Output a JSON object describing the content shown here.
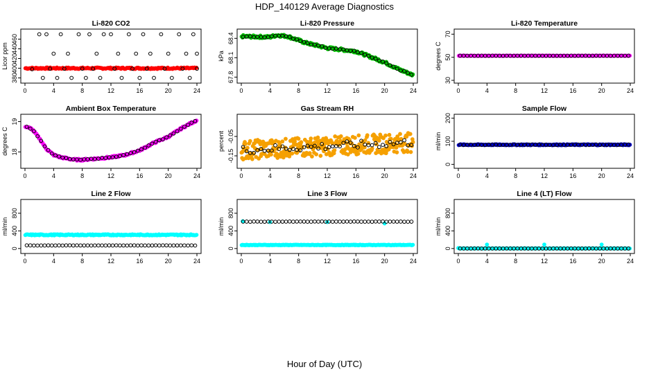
{
  "figure": {
    "title": "HDP_140129  Average Diagnostics",
    "xlabel": "Hour of Day (UTC)"
  },
  "colors": {
    "black": "#000000",
    "red": "#ff0000",
    "green": "#00c000",
    "magenta": "#ff00ff",
    "orange": "#f5a000",
    "blue": "#0000cc",
    "cyan": "#00ffff"
  },
  "chart_data": [
    {
      "type": "scatter",
      "title": "Li-820 CO2",
      "ylabel": "Licor ppm",
      "xlim": [
        0,
        24
      ],
      "ylim": [
        375,
        475
      ],
      "xticks": [
        "0",
        "4",
        "8",
        "12",
        "16",
        "20",
        "24"
      ],
      "yticks": [
        380,
        400,
        420,
        440,
        460
      ],
      "series": [
        {
          "name": "raw",
          "color": "red",
          "marker": "filled",
          "pattern": "const",
          "base": 400,
          "noise": 1.5,
          "n": 180
        },
        {
          "name": "average",
          "color": "black",
          "marker": "open",
          "points": [
            [
              1.0,
              398
            ],
            [
              2.0,
              470
            ],
            [
              2.5,
              380
            ],
            [
              3.0,
              470
            ],
            [
              3.5,
              399
            ],
            [
              4.0,
              430
            ],
            [
              4.5,
              380
            ],
            [
              5.0,
              470
            ],
            [
              5.5,
              399
            ],
            [
              6.0,
              430
            ],
            [
              6.5,
              380
            ],
            [
              7.5,
              470
            ],
            [
              8.0,
              399
            ],
            [
              8.5,
              380
            ],
            [
              9.0,
              470
            ],
            [
              9.5,
              399
            ],
            [
              10.0,
              430
            ],
            [
              10.5,
              380
            ],
            [
              11.0,
              470
            ],
            [
              12.0,
              470
            ],
            [
              12.5,
              399
            ],
            [
              13.0,
              430
            ],
            [
              13.5,
              380
            ],
            [
              14.5,
              470
            ],
            [
              15.0,
              399
            ],
            [
              15.5,
              430
            ],
            [
              16.0,
              380
            ],
            [
              16.5,
              470
            ],
            [
              17.0,
              399
            ],
            [
              17.5,
              430
            ],
            [
              18.0,
              380
            ],
            [
              19.0,
              470
            ],
            [
              19.5,
              399
            ],
            [
              20.0,
              430
            ],
            [
              20.5,
              380
            ],
            [
              21.5,
              470
            ],
            [
              22.0,
              399
            ],
            [
              22.5,
              430
            ],
            [
              23.0,
              380
            ],
            [
              23.5,
              470
            ],
            [
              24.0,
              399
            ],
            [
              24.0,
              430
            ]
          ]
        }
      ]
    },
    {
      "type": "scatter",
      "title": "Li-820 Pressure",
      "ylabel": "kPa",
      "xlim": [
        0,
        24
      ],
      "ylim": [
        67.75,
        68.5
      ],
      "xticks": [
        "0",
        "4",
        "8",
        "12",
        "16",
        "20",
        "24"
      ],
      "yticks": [
        67.8,
        68.1,
        68.4
      ],
      "series": [
        {
          "name": "raw",
          "color": "green",
          "marker": "filled",
          "pattern": "piecewise",
          "knots": [
            [
              0,
              68.43
            ],
            [
              4,
              68.42
            ],
            [
              5,
              68.45
            ],
            [
              6.5,
              68.43
            ],
            [
              9,
              68.33
            ],
            [
              12,
              68.25
            ],
            [
              16,
              68.2
            ],
            [
              20,
              68.03
            ],
            [
              22,
              67.92
            ],
            [
              24,
              67.83
            ]
          ],
          "noise": 0.02,
          "n": 220
        },
        {
          "name": "average",
          "color": "black",
          "marker": "open",
          "pattern": "piecewise",
          "knots": [
            [
              0,
              68.43
            ],
            [
              4,
              68.42
            ],
            [
              5,
              68.45
            ],
            [
              6.5,
              68.43
            ],
            [
              9,
              68.33
            ],
            [
              12,
              68.25
            ],
            [
              16,
              68.2
            ],
            [
              20,
              68.03
            ],
            [
              22,
              67.92
            ],
            [
              24,
              67.83
            ]
          ],
          "noise": 0.008,
          "n": 48
        }
      ]
    },
    {
      "type": "scatter",
      "title": "Li-820 Temperature",
      "ylabel": "degrees C",
      "xlim": [
        0,
        24
      ],
      "ylim": [
        30,
        72
      ],
      "xticks": [
        "0",
        "4",
        "8",
        "12",
        "16",
        "20",
        "24"
      ],
      "yticks": [
        30,
        50,
        70
      ],
      "series": [
        {
          "name": "raw",
          "color": "magenta",
          "marker": "filled",
          "pattern": "const",
          "base": 51.3,
          "noise": 0.1,
          "n": 150
        },
        {
          "name": "average",
          "color": "black",
          "marker": "open",
          "pattern": "const",
          "base": 51.3,
          "noise": 0.05,
          "n": 48
        }
      ]
    },
    {
      "type": "scatter",
      "title": "Ambient Box Temperature",
      "ylabel": "degrees C",
      "xlim": [
        0,
        24
      ],
      "ylim": [
        17.55,
        19.15
      ],
      "xticks": [
        "0",
        "4",
        "8",
        "12",
        "16",
        "20",
        "24"
      ],
      "yticks": [
        18.0,
        19.0
      ],
      "series": [
        {
          "name": "raw",
          "color": "magenta",
          "marker": "filled",
          "pattern": "piecewise",
          "knots": [
            [
              0,
              18.85
            ],
            [
              1,
              18.75
            ],
            [
              2,
              18.45
            ],
            [
              3,
              18.1
            ],
            [
              4,
              17.9
            ],
            [
              5,
              17.82
            ],
            [
              6,
              17.78
            ],
            [
              7,
              17.74
            ],
            [
              8,
              17.74
            ],
            [
              9,
              17.76
            ],
            [
              11,
              17.8
            ],
            [
              12,
              17.82
            ],
            [
              14,
              17.9
            ],
            [
              16,
              18.05
            ],
            [
              18,
              18.3
            ],
            [
              20,
              18.5
            ],
            [
              22,
              18.8
            ],
            [
              24,
              19.05
            ]
          ],
          "noise": 0.03,
          "n": 200
        },
        {
          "name": "average",
          "color": "black",
          "marker": "open",
          "pattern": "piecewise",
          "knots": [
            [
              0,
              18.85
            ],
            [
              1,
              18.75
            ],
            [
              2,
              18.45
            ],
            [
              3,
              18.1
            ],
            [
              4,
              17.9
            ],
            [
              5,
              17.82
            ],
            [
              6,
              17.78
            ],
            [
              7,
              17.74
            ],
            [
              8,
              17.74
            ],
            [
              9,
              17.76
            ],
            [
              11,
              17.8
            ],
            [
              12,
              17.82
            ],
            [
              14,
              17.9
            ],
            [
              16,
              18.05
            ],
            [
              18,
              18.3
            ],
            [
              20,
              18.5
            ],
            [
              22,
              18.8
            ],
            [
              24,
              19.05
            ]
          ],
          "noise": 0.01,
          "n": 48
        }
      ]
    },
    {
      "type": "scatter",
      "title": "Gas Stream RH",
      "ylabel": "percent",
      "xlim": [
        0,
        24
      ],
      "ylim": [
        -0.2,
        0.05
      ],
      "xticks": [
        "0",
        "4",
        "8",
        "12",
        "16",
        "20",
        "24"
      ],
      "yticks": [
        -0.15,
        -0.05
      ],
      "series": [
        {
          "name": "raw",
          "color": "orange",
          "marker": "filled",
          "pattern": "linear",
          "y0": -0.12,
          "y1": -0.08,
          "noise": 0.05,
          "n": 320
        },
        {
          "name": "average",
          "color": "black",
          "marker": "open",
          "pattern": "linear",
          "y0": -0.12,
          "y1": -0.08,
          "noise": 0.02,
          "n": 48
        }
      ]
    },
    {
      "type": "scatter",
      "title": "Sample Flow",
      "ylabel": "ml/min",
      "xlim": [
        0,
        24
      ],
      "ylim": [
        -5,
        205
      ],
      "xticks": [
        "0",
        "4",
        "8",
        "12",
        "16",
        "20",
        "24"
      ],
      "yticks": [
        0,
        100,
        200
      ],
      "series": [
        {
          "name": "raw",
          "color": "blue",
          "marker": "filled",
          "pattern": "const",
          "base": 85,
          "noise": 2,
          "n": 200
        },
        {
          "name": "average",
          "color": "black",
          "marker": "open",
          "pattern": "const",
          "base": 85,
          "noise": 1,
          "n": 48
        }
      ]
    },
    {
      "type": "scatter",
      "title": "Line 2 Flow",
      "ylabel": "ml/min",
      "xlim": [
        0,
        24
      ],
      "ylim": [
        -50,
        1050
      ],
      "xticks": [
        "0",
        "4",
        "8",
        "12",
        "16",
        "20",
        "24"
      ],
      "yticks": [
        0,
        400,
        800
      ],
      "series": [
        {
          "name": "raw",
          "color": "cyan",
          "marker": "filled",
          "pattern": "const",
          "base": 310,
          "noise": 12,
          "n": 220
        },
        {
          "name": "average",
          "color": "black",
          "marker": "open",
          "pattern": "const",
          "base": 70,
          "noise": 2,
          "n": 48
        }
      ]
    },
    {
      "type": "scatter",
      "title": "Line 3 Flow",
      "ylabel": "ml/min",
      "xlim": [
        0,
        24
      ],
      "ylim": [
        -50,
        1050
      ],
      "xticks": [
        "0",
        "4",
        "8",
        "12",
        "16",
        "20",
        "24"
      ],
      "yticks": [
        0,
        400,
        800
      ],
      "series": [
        {
          "name": "raw",
          "color": "cyan",
          "marker": "filled",
          "pattern": "const",
          "base": 80,
          "noise": 6,
          "n": 220
        },
        {
          "name": "raw-high",
          "color": "cyan",
          "marker": "filled",
          "points": [
            [
              0.2,
              620
            ],
            [
              4,
              600
            ],
            [
              12,
              600
            ],
            [
              20,
              570
            ]
          ]
        },
        {
          "name": "average",
          "color": "black",
          "marker": "open",
          "pattern": "const",
          "base": 610,
          "noise": 3,
          "n": 48
        }
      ]
    },
    {
      "type": "scatter",
      "title": "Line 4 (LT) Flow",
      "ylabel": "ml/min",
      "xlim": [
        0,
        24
      ],
      "ylim": [
        -50,
        1050
      ],
      "xticks": [
        "0",
        "4",
        "8",
        "12",
        "16",
        "20",
        "24"
      ],
      "yticks": [
        0,
        400,
        800
      ],
      "series": [
        {
          "name": "raw",
          "color": "cyan",
          "marker": "filled",
          "pattern": "const",
          "base": 2,
          "noise": 2,
          "n": 150
        },
        {
          "name": "raw-spikes",
          "color": "cyan",
          "marker": "filled",
          "points": [
            [
              0,
              10
            ],
            [
              4,
              90
            ],
            [
              12,
              90
            ],
            [
              20,
              90
            ]
          ]
        },
        {
          "name": "average",
          "color": "black",
          "marker": "open",
          "pattern": "const",
          "base": 0,
          "noise": 1,
          "n": 48
        }
      ]
    }
  ]
}
